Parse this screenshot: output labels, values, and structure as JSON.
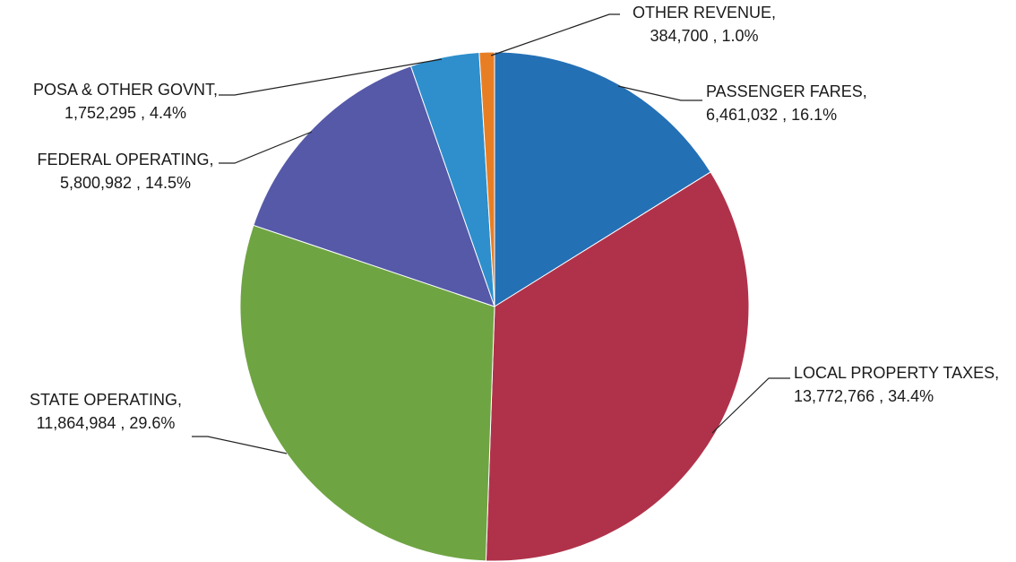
{
  "chart_data": {
    "type": "pie",
    "slices": [
      {
        "name": "PASSENGER FARES,",
        "value_text": "6,461,032 , 16.1%",
        "value": 6461032,
        "percent": 16.1,
        "color": "#2470B5"
      },
      {
        "name": "LOCAL PROPERTY TAXES,",
        "value_text": "13,772,766 , 34.4%",
        "value": 13772766,
        "percent": 34.4,
        "color": "#B0324A"
      },
      {
        "name": "STATE OPERATING,",
        "value_text": "11,864,984 , 29.6%",
        "value": 11864984,
        "percent": 29.6,
        "color": "#6FA443"
      },
      {
        "name": "FEDERAL OPERATING,",
        "value_text": "5,800,982 , 14.5%",
        "value": 5800982,
        "percent": 14.5,
        "color": "#5559A8"
      },
      {
        "name": "POSA & OTHER GOVNT,",
        "value_text": "1,752,295 , 4.4%",
        "value": 1752295,
        "percent": 4.4,
        "color": "#2E8FCC"
      },
      {
        "name": "OTHER REVENUE,",
        "value_text": "384,700 , 1.0%",
        "value": 384700,
        "percent": 1.0,
        "color": "#E87E24"
      }
    ],
    "start_angle": "12 o'clock",
    "direction": "clockwise",
    "legend": "none",
    "label_position": "outside with leader lines"
  }
}
